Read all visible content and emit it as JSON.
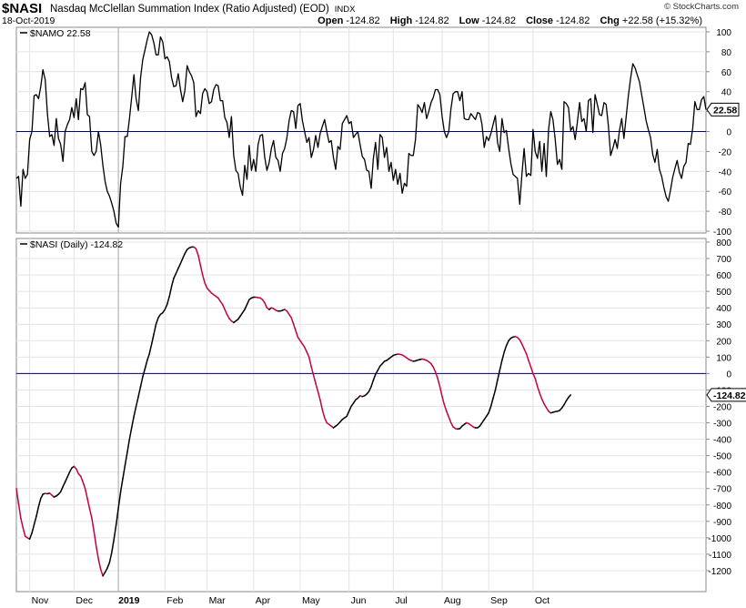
{
  "header": {
    "symbol": "$NASI",
    "name": "Nasdaq McClellan Summation Index (Ratio Adjusted) (EOD)",
    "exchange": "INDX",
    "date": "18-Oct-2019",
    "brand": "© StockCharts.com",
    "open_label": "Open",
    "open_value": "-124.82",
    "high_label": "High",
    "high_value": "-124.82",
    "low_label": "Low",
    "low_value": "-124.82",
    "close_label": "Close",
    "close_value": "-124.82",
    "chg_label": "Chg",
    "chg_value": "+22.58 (+15.32%)"
  },
  "chart_data": [
    {
      "type": "line",
      "legend": "$NAMO 22.58",
      "last_value_label": "22.58",
      "ylim": [
        -100,
        100
      ],
      "yticks": [
        "100",
        "80",
        "60",
        "40",
        "20",
        "0",
        "-20",
        "-40",
        "-60",
        "-80",
        "-100"
      ],
      "reference_line": 0,
      "line_color": "#000000",
      "ref_color": "#000080",
      "values": [
        -47,
        -45,
        -75,
        -38,
        -47,
        -43,
        -8,
        0,
        36,
        37,
        33,
        45,
        62,
        52,
        18,
        -5,
        -3,
        -14,
        13,
        -7,
        -13,
        -30,
        0,
        7,
        12,
        24,
        14,
        33,
        12,
        43,
        42,
        49,
        17,
        15,
        -20,
        -24,
        -20,
        0,
        -13,
        -34,
        -50,
        -60,
        -65,
        -72,
        -80,
        -92,
        -96,
        -52,
        -35,
        -5,
        -5,
        13,
        34,
        57,
        33,
        21,
        54,
        72,
        82,
        92,
        100,
        97,
        89,
        77,
        77,
        95,
        90,
        73,
        75,
        70,
        54,
        45,
        46,
        58,
        42,
        30,
        41,
        66,
        60,
        56,
        49,
        15,
        21,
        18,
        38,
        43,
        40,
        28,
        30,
        42,
        47,
        46,
        31,
        31,
        14,
        9,
        -6,
        15,
        -24,
        -39,
        -42,
        -56,
        -64,
        -34,
        -48,
        -14,
        -39,
        -28,
        -40,
        -13,
        -4,
        -3,
        -26,
        -39,
        -31,
        -17,
        -9,
        -26,
        -29,
        -40,
        -22,
        -17,
        -6,
        11,
        21,
        20,
        3,
        26,
        28,
        11,
        0,
        -11,
        -6,
        -26,
        -18,
        -4,
        -16,
        -2,
        5,
        12,
        0,
        -11,
        -9,
        -26,
        -38,
        -15,
        -18,
        8,
        12,
        16,
        8,
        10,
        -6,
        -3,
        0,
        -13,
        -25,
        -28,
        -39,
        -40,
        -57,
        -27,
        -11,
        -38,
        -3,
        -6,
        -26,
        -16,
        -40,
        -31,
        -49,
        -38,
        -53,
        -42,
        -62,
        -52,
        -55,
        -22,
        -24,
        -24,
        -8,
        27,
        24,
        19,
        29,
        13,
        20,
        29,
        34,
        42,
        42,
        37,
        15,
        0,
        -6,
        0,
        23,
        38,
        40,
        40,
        31,
        40,
        13,
        12,
        12,
        18,
        15,
        12,
        19,
        18,
        7,
        -16,
        -5,
        -9,
        -2,
        7,
        16,
        -11,
        -20,
        13,
        -1,
        1,
        -17,
        -32,
        -43,
        -45,
        -47,
        -73,
        -43,
        -17,
        -45,
        -42,
        -44,
        2,
        -20,
        -27,
        -10,
        -40,
        -12,
        -45,
        2,
        20,
        12,
        -8,
        -33,
        -28,
        -38,
        30,
        28,
        24,
        1,
        5,
        -8,
        9,
        29,
        10,
        13,
        0,
        31,
        33,
        -1,
        37,
        27,
        17,
        16,
        29,
        27,
        5,
        -24,
        -17,
        -8,
        -17,
        1,
        13,
        -7,
        15,
        36,
        53,
        68,
        64,
        57,
        50,
        37,
        24,
        11,
        2,
        -6,
        -23,
        -31,
        -18,
        -38,
        -45,
        -56,
        -65,
        -70,
        -59,
        -46,
        -37,
        -29,
        -41,
        -47,
        -35,
        -31,
        -12,
        -13,
        3,
        30,
        22,
        22,
        32,
        35,
        22
      ]
    },
    {
      "type": "line",
      "legend": "$NASI (Daily) -124.82",
      "last_value_label": "-124.82",
      "ylim": [
        -1250,
        800
      ],
      "yticks": [
        "800",
        "700",
        "600",
        "500",
        "400",
        "300",
        "200",
        "100",
        "0",
        "-100",
        "-200",
        "-300",
        "-400",
        "-500",
        "-600",
        "-700",
        "-800",
        "-900",
        "-1000",
        "-1100",
        "-1200"
      ],
      "reference_line": 0,
      "ref_color": "#000080",
      "up_color": "#000000",
      "down_color": "#c8003c",
      "values": [
        -700,
        -792,
        -882,
        -940,
        -990,
        -1000,
        -1008,
        -970,
        -920,
        -870,
        -810,
        -760,
        -735,
        -730,
        -732,
        -728,
        -740,
        -752,
        -745,
        -735,
        -720,
        -688,
        -660,
        -630,
        -600,
        -575,
        -565,
        -580,
        -610,
        -625,
        -660,
        -700,
        -760,
        -820,
        -880,
        -960,
        -1050,
        -1130,
        -1190,
        -1232,
        -1210,
        -1185,
        -1150,
        -1090,
        -1010,
        -920,
        -820,
        -720,
        -640,
        -560,
        -480,
        -400,
        -330,
        -260,
        -200,
        -140,
        -80,
        -20,
        30,
        80,
        120,
        180,
        240,
        300,
        340,
        360,
        370,
        390,
        420,
        470,
        530,
        580,
        610,
        640,
        670,
        700,
        730,
        755,
        765,
        770,
        770,
        760,
        720,
        660,
        600,
        550,
        520,
        505,
        490,
        480,
        470,
        460,
        440,
        420,
        390,
        360,
        335,
        320,
        310,
        320,
        330,
        350,
        370,
        390,
        420,
        450,
        460,
        465,
        465,
        462,
        460,
        450,
        430,
        400,
        390,
        400,
        395,
        385,
        380,
        380,
        385,
        390,
        380,
        360,
        340,
        300,
        260,
        220,
        200,
        180,
        160,
        130,
        100,
        40,
        -10,
        -60,
        -110,
        -160,
        -220,
        -270,
        -300,
        -310,
        -320,
        -330,
        -320,
        -310,
        -295,
        -280,
        -270,
        -260,
        -230,
        -200,
        -180,
        -160,
        -150,
        -135,
        -140,
        -135,
        -125,
        -110,
        -80,
        -40,
        -5,
        20,
        45,
        60,
        75,
        80,
        90,
        100,
        110,
        115,
        118,
        117,
        113,
        105,
        95,
        85,
        80,
        75,
        77,
        82,
        85,
        88,
        85,
        80,
        72,
        60,
        40,
        10,
        -30,
        -80,
        -140,
        -190,
        -230,
        -265,
        -300,
        -325,
        -335,
        -338,
        -335,
        -320,
        -310,
        -300,
        -305,
        -315,
        -325,
        -330,
        -330,
        -320,
        -300,
        -280,
        -260,
        -240,
        -200,
        -150,
        -100,
        -40,
        20,
        80,
        130,
        170,
        200,
        215,
        222,
        225,
        220,
        205,
        180,
        150,
        120,
        80,
        40,
        0,
        -30,
        -80,
        -120,
        -155,
        -185,
        -208,
        -230,
        -240,
        -236,
        -232,
        -230,
        -225,
        -210,
        -190,
        -165,
        -145,
        -130
      ]
    }
  ],
  "x_axis": {
    "month_labels": [
      {
        "label": "Nov",
        "index": 6
      },
      {
        "label": "Dec",
        "index": 26
      },
      {
        "label": "2019",
        "index": 46
      },
      {
        "label": "Feb",
        "index": 67
      },
      {
        "label": "Mar",
        "index": 86
      },
      {
        "label": "Apr",
        "index": 107
      },
      {
        "label": "May",
        "index": 128
      },
      {
        "label": "Jun",
        "index": 150
      },
      {
        "label": "Jul",
        "index": 170
      },
      {
        "label": "Aug",
        "index": 192
      },
      {
        "label": "Sep",
        "index": 213
      },
      {
        "label": "Oct",
        "index": 233
      }
    ],
    "year_line_index": 46
  },
  "colors": {
    "grid": "#e4e4e4",
    "frame": "#888888",
    "text": "#000000"
  }
}
